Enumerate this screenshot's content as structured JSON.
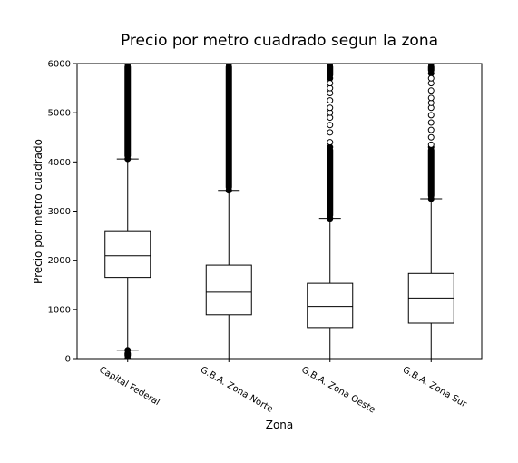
{
  "chart_data": {
    "type": "box",
    "title": "Precio por metro cuadrado segun la zona",
    "xlabel": "Zona",
    "ylabel": "Precio por metro cuadrado",
    "ylim": [
      0,
      6000
    ],
    "yticks": [
      0,
      1000,
      2000,
      3000,
      4000,
      5000,
      6000
    ],
    "grid": false,
    "categories": [
      "Capital Federal",
      "G.B.A. Zona Norte",
      "G.B.A. Zona Oeste",
      "G.B.A. Zona Sur"
    ],
    "boxes": [
      {
        "category": "Capital Federal",
        "whisker_low": 170,
        "q1": 1650,
        "median": 2090,
        "q3": 2600,
        "whisker_high": 4060,
        "outliers_dense": [
          [
            4060,
            6000
          ],
          [
            0,
            170
          ]
        ],
        "outliers_sparse": []
      },
      {
        "category": "G.B.A. Zona Norte",
        "whisker_low": 0,
        "q1": 890,
        "median": 1350,
        "q3": 1900,
        "whisker_high": 3420,
        "outliers_dense": [
          [
            3420,
            6000
          ]
        ],
        "outliers_sparse": []
      },
      {
        "category": "G.B.A. Zona Oeste",
        "whisker_low": 0,
        "q1": 630,
        "median": 1060,
        "q3": 1530,
        "whisker_high": 2850,
        "outliers_dense": [
          [
            2850,
            4300
          ],
          [
            5700,
            6000
          ]
        ],
        "outliers_sparse": [
          4400,
          4600,
          4750,
          4900,
          5000,
          5100,
          5250,
          5400,
          5500,
          5600
        ]
      },
      {
        "category": "G.B.A. Zona Sur",
        "whisker_low": 0,
        "q1": 720,
        "median": 1230,
        "q3": 1730,
        "whisker_high": 3250,
        "outliers_dense": [
          [
            3250,
            4300
          ],
          [
            5800,
            6000
          ]
        ],
        "outliers_sparse": [
          4350,
          4500,
          4650,
          4800,
          4950,
          5100,
          5200,
          5300,
          5450,
          5600,
          5700
        ]
      }
    ]
  }
}
